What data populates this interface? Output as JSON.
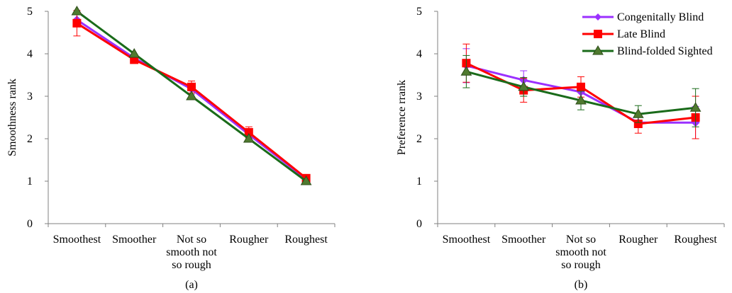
{
  "series_legend": [
    {
      "name": "Congenitally Blind",
      "color": "#9b30ff",
      "marker": "diamond"
    },
    {
      "name": "Late Blind",
      "color": "#ff0000",
      "marker": "square"
    },
    {
      "name": "Blind-folded Sighted",
      "color": "#1a6b1a",
      "marker": "triangle"
    }
  ],
  "chart_data": [
    {
      "type": "line",
      "caption": "(a)",
      "ylabel": "Smoothness rank",
      "xlabel": "",
      "ylim": [
        0,
        5
      ],
      "yticks": [
        "0",
        "1",
        "2",
        "3",
        "4",
        "5"
      ],
      "grid": false,
      "legend": "none",
      "categories": [
        [
          "Smoothest"
        ],
        [
          "Smoother"
        ],
        [
          "Not so",
          "smooth not",
          "so rough"
        ],
        [
          "Rougher"
        ],
        [
          "Roughest"
        ]
      ],
      "series": [
        {
          "name": "Congenitally Blind",
          "color": "#9b30ff",
          "marker": "diamond",
          "values": [
            4.8,
            3.9,
            3.17,
            2.1,
            1.05
          ],
          "err": [
            0.0,
            0.0,
            0.12,
            0.05,
            0.03
          ]
        },
        {
          "name": "Late Blind",
          "color": "#ff0000",
          "marker": "square",
          "values": [
            4.72,
            3.86,
            3.22,
            2.15,
            1.07
          ],
          "err": [
            0.3,
            0.05,
            0.14,
            0.13,
            0.05
          ]
        },
        {
          "name": "Blind-folded Sighted",
          "color": "#1a6b1a",
          "marker": "triangle",
          "values": [
            5.0,
            4.0,
            3.0,
            2.0,
            1.0
          ],
          "err": [
            0,
            0,
            0,
            0,
            0
          ]
        }
      ]
    },
    {
      "type": "line",
      "caption": "(b)",
      "ylabel": "Preference rrank",
      "xlabel": "",
      "ylim": [
        0,
        5
      ],
      "yticks": [
        "0",
        "1",
        "2",
        "3",
        "4",
        "5"
      ],
      "grid": false,
      "legend": "top-right",
      "categories": [
        [
          "Smoothest"
        ],
        [
          "Smoother"
        ],
        [
          "Not so",
          "smooth not",
          "so rough"
        ],
        [
          "Rougher"
        ],
        [
          "Roughest"
        ]
      ],
      "series": [
        {
          "name": "Congenitally Blind",
          "color": "#9b30ff",
          "marker": "diamond",
          "values": [
            3.72,
            3.38,
            3.1,
            2.38,
            2.38
          ],
          "err": [
            0.4,
            0.22,
            0.2,
            0.12,
            0.38
          ]
        },
        {
          "name": "Late Blind",
          "color": "#ff0000",
          "marker": "square",
          "values": [
            3.78,
            3.14,
            3.22,
            2.35,
            2.5
          ],
          "err": [
            0.45,
            0.28,
            0.24,
            0.22,
            0.5
          ]
        },
        {
          "name": "Blind-folded Sighted",
          "color": "#1a6b1a",
          "marker": "triangle",
          "values": [
            3.58,
            3.22,
            2.9,
            2.58,
            2.73
          ],
          "err": [
            0.38,
            0.22,
            0.22,
            0.2,
            0.45
          ]
        }
      ]
    }
  ]
}
